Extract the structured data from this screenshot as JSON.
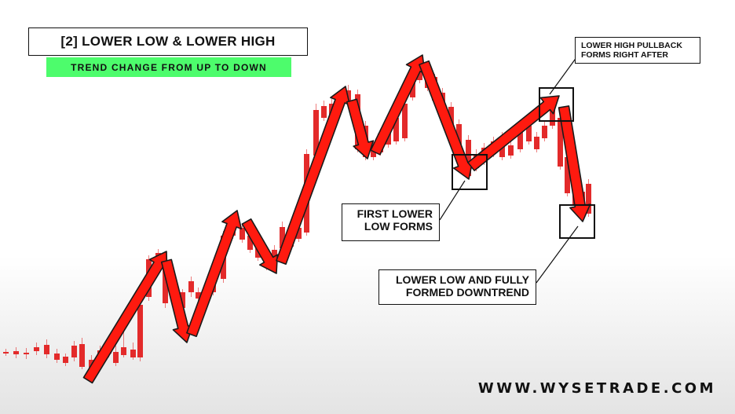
{
  "header": {
    "title": "[2] LOWER LOW & LOWER HIGH",
    "subtitle": "TREND CHANGE FROM UP TO DOWN"
  },
  "annotations": {
    "pullback": "LOWER HIGH PULLBACK\nFORMS RIGHT AFTER",
    "first_lower_low": "FIRST LOWER\nLOW FORMS",
    "lower_low": "LOWER LOW AND FULLY\nFORMED DOWNTREND"
  },
  "brand": "WWW.WYSETRADE.COM",
  "colors": {
    "bull": "#2fe07a",
    "bear": "#e32a2a",
    "arrow_fill": "#ff1a0f",
    "arrow_stroke": "#1a1a1a",
    "highlight": "#4dfc6c"
  }
}
